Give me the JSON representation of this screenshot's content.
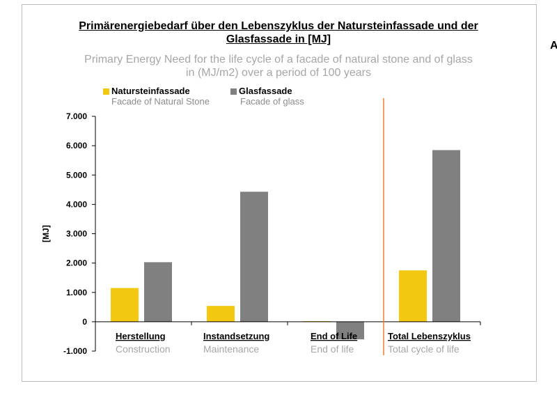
{
  "title_line1": "Primärenergiebedarf über den Lebenszyklus der Natursteinfassade und der",
  "title_line2": "Glasfassade in [MJ]",
  "subtitle_line1": "Primary Energy Need for the life cycle of a facade of natural stone and of glass",
  "subtitle_line2": "in (MJ/m2) over a period of 100 years",
  "edge_letter": "A",
  "colors": {
    "stone": "#f2c811",
    "glass": "#808080",
    "divider": "#ed7d31",
    "axis": "#000000",
    "english": "#a6a6a6"
  },
  "legend": [
    {
      "name": "Natursteinfassade",
      "english": "Facade of Natural Stone"
    },
    {
      "name": "Glasfassade",
      "english": "Facade of glass"
    }
  ],
  "chart_data": {
    "type": "bar",
    "categories": [
      "Herstellung",
      "Instandsetzung",
      "End of Life",
      "Total Lebenszyklus"
    ],
    "categories_english": [
      "Construction",
      "Maintenance",
      "End of life",
      "Total cycle of life"
    ],
    "series": [
      {
        "name": "Natursteinfassade",
        "values": [
          1150,
          540,
          20,
          1750
        ]
      },
      {
        "name": "Glasfassade",
        "values": [
          2030,
          4430,
          -600,
          5850
        ]
      }
    ],
    "ylabel": "[MJ]",
    "ylim": [
      -1000,
      7000
    ],
    "yticks": [
      7000,
      6000,
      5000,
      4000,
      3000,
      2000,
      1000,
      0,
      -1000
    ],
    "ytick_labels": [
      "7.000",
      "6.000",
      "5.000",
      "4.000",
      "3.000",
      "2.000",
      "1.000",
      "0",
      "-1.000"
    ],
    "grid": false,
    "legend_position": "top-left"
  }
}
